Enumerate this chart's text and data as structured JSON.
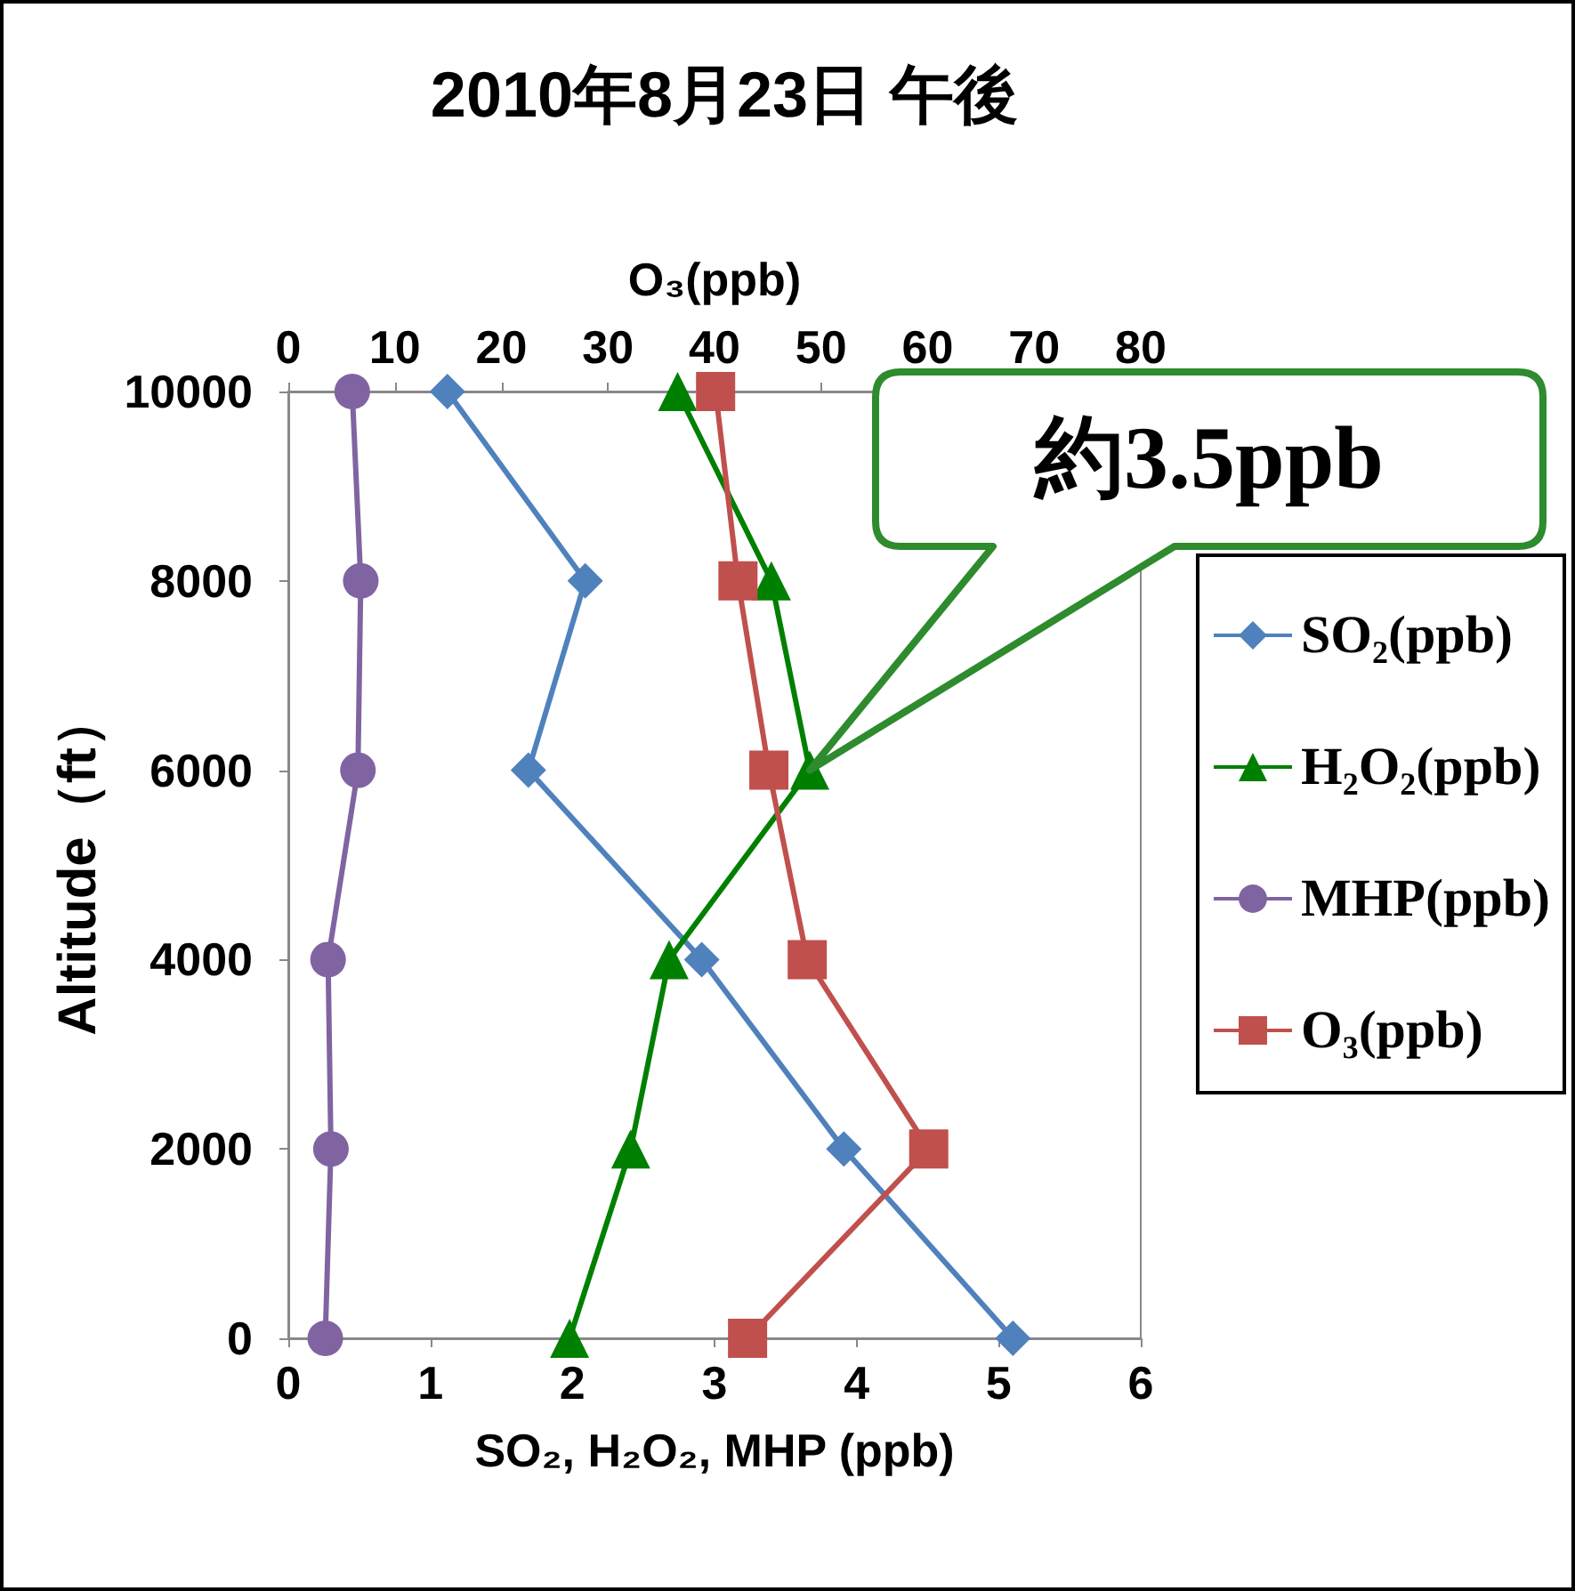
{
  "chart_data": {
    "type": "line",
    "title": "2010年8月23日 午後",
    "xlabel": "SO₂, H₂O₂, MHP (ppb)",
    "x2label": "O₃(ppb)",
    "ylabel": "Altitude（ft）",
    "xlim": [
      0,
      6
    ],
    "xticks": [
      0,
      1,
      2,
      3,
      4,
      5,
      6
    ],
    "x2lim": [
      0,
      80
    ],
    "x2ticks": [
      0,
      10,
      20,
      30,
      40,
      50,
      60,
      70,
      80
    ],
    "ylim": [
      0,
      10000
    ],
    "yticks": [
      0,
      2000,
      4000,
      6000,
      8000,
      10000
    ],
    "grid": false,
    "legend": "right",
    "line_style": "solid",
    "series": [
      {
        "name": "SO₂(ppb)",
        "color": "#4f81bd",
        "marker": "diamond",
        "x": [
          1.12,
          2.09,
          1.69,
          2.91,
          3.91,
          5.1
        ],
        "values": [
          10000,
          8000,
          6000,
          4000,
          2000,
          0
        ]
      },
      {
        "name": "H₂O₂(ppb)",
        "color": "#008000",
        "marker": "triangle",
        "x": [
          2.74,
          3.4,
          3.67,
          2.68,
          2.41,
          1.98
        ],
        "values": [
          10000,
          8000,
          6000,
          4000,
          2000,
          0
        ]
      },
      {
        "name": "MHP(ppb)",
        "color": "#8064a2",
        "marker": "circle",
        "x": [
          0.45,
          0.51,
          0.49,
          0.28,
          0.3,
          0.26
        ],
        "values": [
          10000,
          8000,
          6000,
          4000,
          2000,
          0
        ]
      },
      {
        "name": "O₃(ppb)",
        "color": "#c0504d",
        "marker": "square",
        "axis": "x2",
        "x": [
          40.1,
          42.2,
          45.1,
          48.7,
          60.1,
          43.1
        ],
        "values": [
          10000,
          8000,
          6000,
          4000,
          2000,
          0
        ]
      }
    ],
    "annotations": [
      "約3.5ppb"
    ]
  }
}
